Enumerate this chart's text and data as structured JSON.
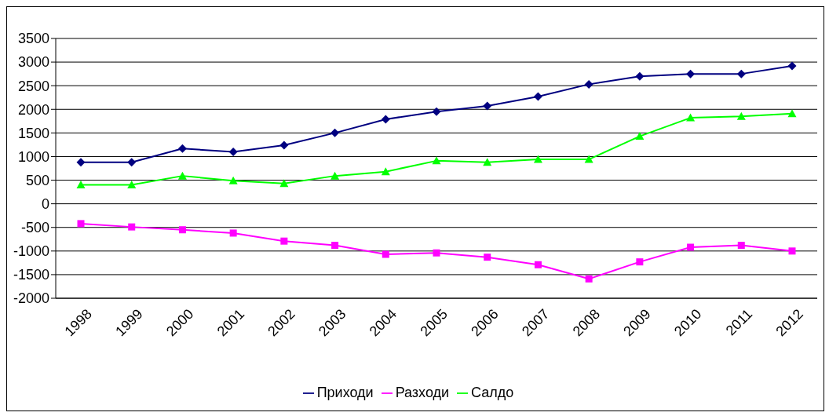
{
  "chart_data": {
    "type": "line",
    "categories": [
      "1998",
      "1999",
      "2000",
      "2001",
      "2002",
      "2003",
      "2004",
      "2005",
      "2006",
      "2007",
      "2008",
      "2009",
      "2010",
      "2011",
      "2012"
    ],
    "series": [
      {
        "name": "Приходи",
        "color": "#000080",
        "marker": "diamond",
        "values": [
          880,
          880,
          1170,
          1100,
          1240,
          1500,
          1790,
          1950,
          2070,
          2270,
          2530,
          2700,
          2750,
          2750,
          2920
        ]
      },
      {
        "name": "Разходи",
        "color": "#ff00ff",
        "marker": "square",
        "values": [
          -420,
          -490,
          -550,
          -620,
          -790,
          -880,
          -1070,
          -1040,
          -1130,
          -1290,
          -1590,
          -1230,
          -920,
          -880,
          -1000
        ]
      },
      {
        "name": "Салдо",
        "color": "#00ff00",
        "marker": "triangle",
        "values": [
          400,
          400,
          590,
          490,
          430,
          590,
          680,
          910,
          880,
          940,
          940,
          1430,
          1820,
          1850,
          1910
        ]
      }
    ],
    "ylim": [
      -2000,
      3500
    ],
    "yticks": [
      -2000,
      -1500,
      -1000,
      -500,
      0,
      500,
      1000,
      1500,
      2000,
      2500,
      3000,
      3500
    ],
    "grid": "y",
    "legend": "bottom",
    "line_style": "solid"
  }
}
